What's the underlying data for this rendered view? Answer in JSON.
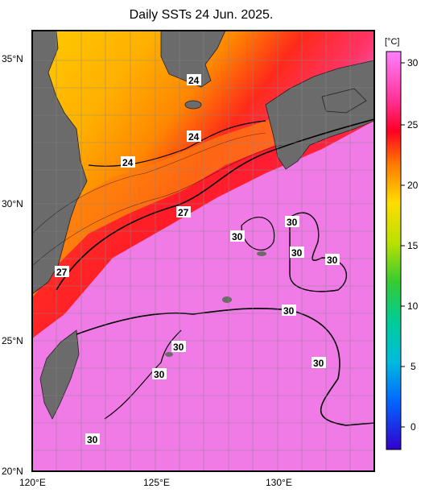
{
  "title": "Daily SSTs 24 Jun. 2025.",
  "latitude_labels": [
    "35°N",
    "30°N",
    "25°N",
    "20°N"
  ],
  "longitude_labels": [
    "120°E",
    "125°E",
    "130°E"
  ],
  "colorbar": {
    "unit": "[°C]",
    "tick_labels": [
      "30",
      "25",
      "20",
      "15",
      "10",
      "5",
      "0"
    ],
    "colors": [
      "#ff66ff",
      "#ff0033",
      "#ff9900",
      "#ffee00",
      "#33cc33",
      "#00cccc",
      "#0066ff",
      "#3300cc"
    ]
  },
  "contour_labels": [
    "24",
    "24",
    "24",
    "27",
    "27",
    "30",
    "30",
    "30",
    "30",
    "30",
    "30",
    "30",
    "30",
    "30"
  ],
  "colors": {
    "land": "#666666",
    "warm_sea": "#f080e8",
    "mid_sea": "#ff2020",
    "cool_sea": "#ffb000"
  }
}
